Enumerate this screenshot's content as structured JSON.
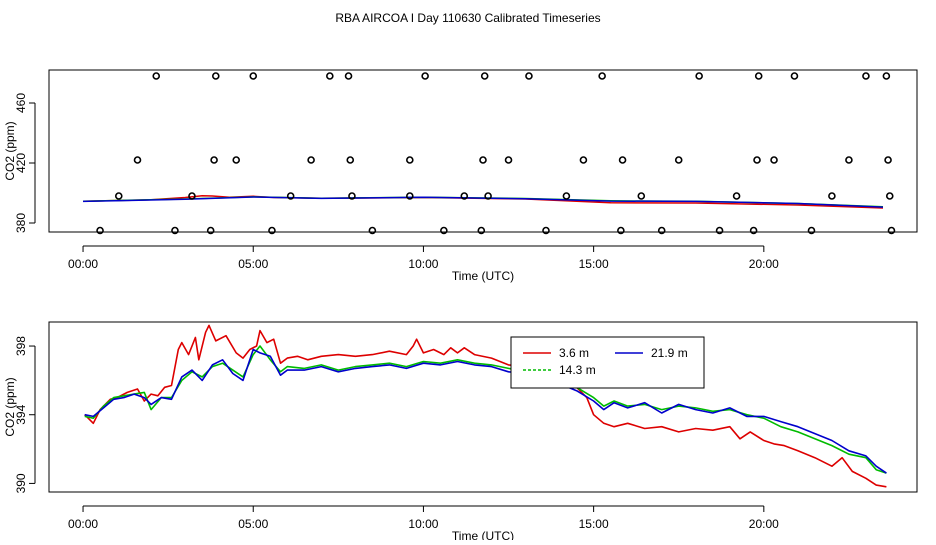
{
  "page_title": "RBA AIRCOA I  Day 110630  Calibrated Timeseries",
  "chart_data": [
    {
      "type": "scatter",
      "title": "RBA AIRCOA I  Day 110630  Calibrated Timeseries",
      "xlabel": "Time (UTC)",
      "ylabel": "CO2 (ppm)",
      "xlim": [
        -1.0,
        24.5
      ],
      "ylim": [
        374,
        482
      ],
      "xticks": [
        0,
        5,
        10,
        15,
        20
      ],
      "xtick_labels": [
        "00:00",
        "05:00",
        "10:00",
        "15:00",
        "20:00"
      ],
      "yticks": [
        380,
        420,
        460
      ],
      "ytick_labels": [
        "380",
        "420",
        "460"
      ],
      "calibration_points": {
        "x": [
          0.5,
          1.05,
          1.6,
          2.15,
          2.7,
          3.2,
          3.75,
          3.85,
          3.9,
          4.5,
          5.0,
          5.55,
          6.1,
          6.7,
          7.25,
          7.8,
          7.85,
          7.9,
          8.5,
          9.6,
          9.6,
          10.05,
          10.6,
          11.2,
          11.7,
          11.75,
          11.8,
          11.9,
          12.5,
          13.1,
          13.6,
          14.2,
          14.7,
          15.25,
          15.8,
          15.85,
          16.4,
          17.0,
          17.5,
          18.1,
          18.7,
          19.2,
          19.7,
          19.8,
          19.85,
          20.3,
          20.9,
          21.4,
          22.0,
          22.5,
          23.0,
          23.6,
          23.65,
          23.7,
          23.75
        ],
        "y": [
          375,
          398,
          422,
          478,
          375,
          398,
          375,
          422,
          478,
          422,
          478,
          375,
          398,
          422,
          478,
          478,
          422,
          398,
          375,
          422,
          398,
          478,
          375,
          398,
          375,
          422,
          478,
          398,
          422,
          478,
          375,
          398,
          422,
          478,
          375,
          422,
          398,
          375,
          422,
          478,
          375,
          398,
          375,
          422,
          478,
          422,
          478,
          375,
          398,
          422,
          478,
          478,
          422,
          398,
          375
        ]
      },
      "series": [
        {
          "name": "3.6 m",
          "color": "#dd0000",
          "x": [
            0.0,
            2.0,
            3.0,
            3.5,
            3.8,
            4.3,
            5.0,
            5.6,
            7.0,
            10.0,
            13.0,
            15.5,
            18.0,
            21.0,
            23.5
          ],
          "values": [
            394.5,
            395.5,
            397.0,
            398.2,
            398.0,
            397.2,
            397.8,
            397.0,
            396.5,
            397.0,
            396.0,
            393.5,
            393.3,
            392.0,
            390.0
          ]
        },
        {
          "name": "14.3 m",
          "color": "#00bb00",
          "x": [
            0.0,
            3.0,
            5.0,
            7.0,
            10.0,
            13.0,
            15.5,
            18.0,
            21.0,
            23.5
          ],
          "values": [
            394.5,
            396.0,
            397.4,
            396.5,
            397.2,
            396.3,
            394.8,
            394.5,
            393.0,
            390.8
          ]
        },
        {
          "name": "21.9 m",
          "color": "#0000cc",
          "x": [
            0.0,
            3.0,
            5.0,
            7.0,
            10.0,
            13.0,
            15.5,
            18.0,
            21.0,
            23.5
          ],
          "values": [
            394.4,
            395.8,
            397.3,
            396.4,
            397.1,
            396.2,
            394.6,
            394.4,
            393.0,
            390.6
          ]
        }
      ]
    },
    {
      "type": "line",
      "xlabel": "Time (UTC)",
      "ylabel": "CO2 (ppm)",
      "xlim": [
        -1.0,
        24.5
      ],
      "ylim": [
        389.5,
        399.4
      ],
      "xticks": [
        0,
        5,
        10,
        15,
        20
      ],
      "xtick_labels": [
        "00:00",
        "05:00",
        "10:00",
        "15:00",
        "20:00"
      ],
      "yticks": [
        390,
        394,
        398
      ],
      "ytick_labels": [
        "390",
        "394",
        "398"
      ],
      "legend": {
        "position": "top-right",
        "entries": [
          "3.6 m",
          "21.9 m",
          "14.3 m"
        ]
      },
      "series": [
        {
          "name": "3.6 m",
          "color": "#dd0000",
          "x": [
            0.05,
            0.3,
            0.5,
            0.8,
            1.0,
            1.3,
            1.6,
            1.8,
            2.0,
            2.2,
            2.4,
            2.6,
            2.8,
            2.9,
            3.1,
            3.3,
            3.4,
            3.6,
            3.7,
            3.9,
            4.2,
            4.5,
            4.7,
            4.9,
            5.1,
            5.2,
            5.4,
            5.6,
            5.8,
            6.0,
            6.3,
            6.6,
            7.0,
            7.5,
            8.0,
            8.5,
            9.0,
            9.5,
            9.7,
            9.8,
            10.0,
            10.3,
            10.6,
            10.8,
            11.0,
            11.2,
            11.5,
            12.0,
            12.5,
            13.0,
            13.5,
            14.0,
            14.5,
            14.8,
            15.0,
            15.3,
            15.6,
            16.0,
            16.5,
            17.0,
            17.5,
            18.0,
            18.5,
            19.0,
            19.3,
            19.6,
            20.0,
            20.3,
            20.6,
            21.0,
            21.5,
            22.0,
            22.3,
            22.6,
            23.0,
            23.3,
            23.6
          ],
          "values": [
            394.0,
            393.5,
            394.3,
            394.9,
            395.0,
            395.3,
            395.5,
            394.8,
            395.2,
            395.1,
            395.6,
            395.7,
            397.8,
            398.2,
            397.5,
            398.5,
            397.2,
            398.8,
            399.2,
            398.3,
            398.6,
            397.6,
            397.3,
            397.8,
            398.0,
            398.9,
            398.2,
            398.4,
            397.0,
            397.3,
            397.4,
            397.2,
            397.4,
            397.5,
            397.4,
            397.5,
            397.7,
            397.5,
            398.0,
            398.4,
            397.6,
            397.8,
            397.5,
            397.9,
            397.6,
            397.9,
            397.5,
            397.3,
            396.9,
            396.8,
            396.4,
            396.0,
            395.6,
            395.0,
            394.0,
            393.5,
            393.3,
            393.5,
            393.2,
            393.3,
            393.0,
            393.2,
            393.1,
            393.3,
            392.6,
            393.0,
            392.5,
            392.3,
            392.2,
            391.9,
            391.5,
            391.0,
            391.5,
            390.7,
            390.3,
            389.9,
            389.8
          ]
        },
        {
          "name": "14.3 m",
          "color": "#00bb00",
          "x": [
            0.05,
            0.3,
            0.6,
            0.9,
            1.2,
            1.5,
            1.8,
            2.0,
            2.3,
            2.6,
            2.9,
            3.2,
            3.5,
            3.8,
            4.1,
            4.4,
            4.7,
            5.0,
            5.2,
            5.5,
            5.8,
            6.0,
            6.5,
            7.0,
            7.5,
            8.0,
            8.5,
            9.0,
            9.5,
            10.0,
            10.5,
            11.0,
            11.5,
            12.0,
            12.5,
            13.0,
            13.5,
            14.0,
            14.5,
            15.0,
            15.3,
            15.6,
            16.0,
            16.5,
            17.0,
            17.5,
            18.0,
            18.5,
            19.0,
            19.5,
            20.0,
            20.5,
            21.0,
            21.5,
            22.0,
            22.5,
            23.0,
            23.3,
            23.6
          ],
          "values": [
            393.9,
            393.8,
            394.5,
            395.0,
            395.1,
            395.2,
            395.3,
            394.3,
            395.0,
            395.0,
            396.0,
            396.5,
            396.2,
            396.8,
            397.0,
            396.6,
            396.2,
            397.5,
            398.0,
            397.2,
            396.5,
            396.8,
            396.7,
            396.9,
            396.6,
            396.8,
            396.9,
            397.0,
            396.8,
            397.1,
            397.0,
            397.2,
            397.0,
            396.9,
            396.7,
            396.5,
            396.3,
            396.0,
            395.6,
            395.0,
            394.5,
            394.8,
            394.5,
            394.6,
            394.3,
            394.5,
            394.4,
            394.2,
            394.3,
            394.0,
            393.8,
            393.3,
            393.0,
            392.6,
            392.2,
            391.7,
            391.5,
            390.8,
            390.6
          ]
        },
        {
          "name": "21.9 m",
          "color": "#0000cc",
          "x": [
            0.05,
            0.3,
            0.6,
            0.9,
            1.2,
            1.5,
            1.8,
            2.0,
            2.3,
            2.6,
            2.9,
            3.2,
            3.5,
            3.8,
            4.1,
            4.4,
            4.7,
            5.0,
            5.2,
            5.5,
            5.8,
            6.0,
            6.5,
            7.0,
            7.5,
            8.0,
            8.5,
            9.0,
            9.5,
            10.0,
            10.5,
            11.0,
            11.5,
            12.0,
            12.5,
            13.0,
            13.5,
            14.0,
            14.5,
            15.0,
            15.3,
            15.6,
            16.0,
            16.5,
            17.0,
            17.5,
            18.0,
            18.5,
            19.0,
            19.5,
            20.0,
            20.5,
            21.0,
            21.5,
            22.0,
            22.5,
            23.0,
            23.3,
            23.6
          ],
          "values": [
            394.0,
            393.9,
            394.4,
            394.9,
            395.0,
            395.2,
            395.0,
            394.6,
            395.0,
            394.9,
            396.2,
            396.6,
            396.0,
            396.9,
            397.2,
            396.4,
            396.0,
            397.8,
            397.6,
            397.4,
            396.3,
            396.6,
            396.6,
            396.8,
            396.5,
            396.7,
            396.8,
            396.9,
            396.7,
            397.0,
            396.9,
            397.1,
            396.9,
            396.8,
            396.5,
            396.4,
            396.2,
            395.8,
            395.4,
            394.8,
            394.3,
            394.7,
            394.4,
            394.7,
            394.1,
            394.6,
            394.3,
            394.1,
            394.4,
            393.9,
            393.9,
            393.6,
            393.3,
            392.9,
            392.5,
            391.9,
            391.6,
            391.0,
            390.6
          ]
        }
      ]
    }
  ]
}
